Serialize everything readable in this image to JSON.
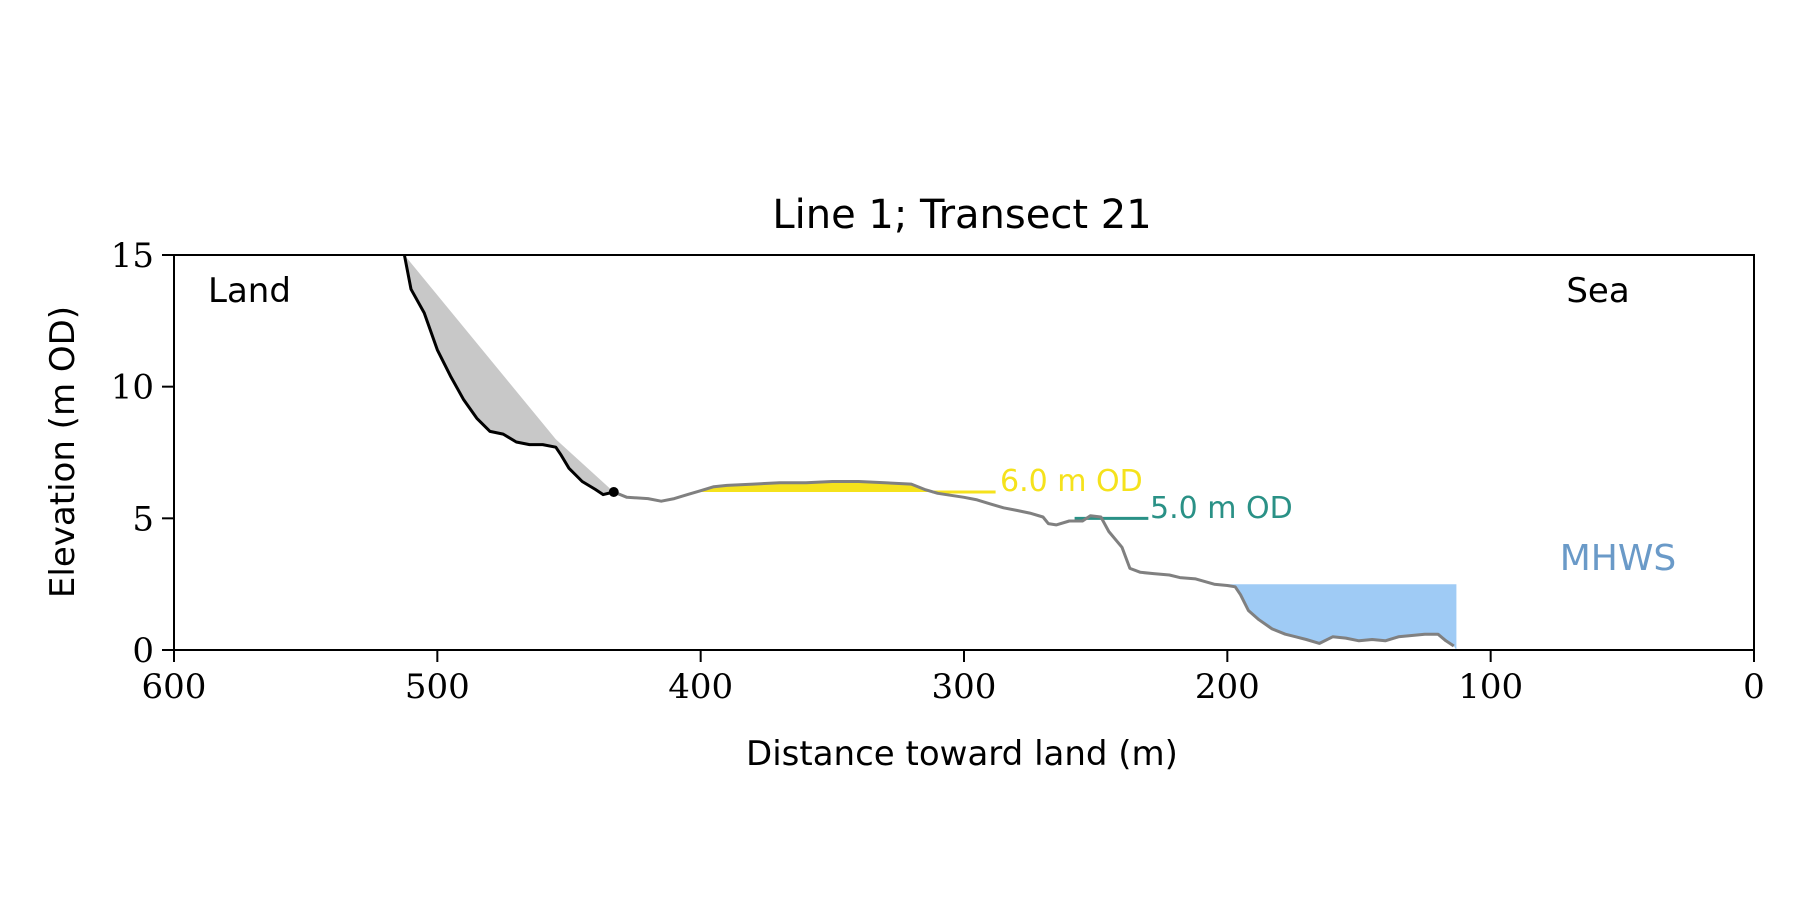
{
  "chart_data": {
    "type": "line",
    "title": "Line 1; Transect 21",
    "xlabel": "Distance toward land (m)",
    "ylabel": "Elevation (m OD)",
    "xlim": [
      600,
      0
    ],
    "ylim": [
      0,
      15
    ],
    "x_ticks": [
      600,
      500,
      400,
      300,
      200,
      100,
      0
    ],
    "y_ticks": [
      0,
      5,
      10,
      15
    ],
    "x_inverted": true,
    "grid": false,
    "annotations": {
      "land": "Land",
      "sea": "Sea",
      "mhws": "MHWS",
      "od6": "6.0 m OD",
      "od5": "5.0 m OD"
    },
    "colors": {
      "cliff_line": "#000000",
      "profile_line": "#808080",
      "cliff_fill": "#c8c8c8",
      "od6": "#f5e21c",
      "od5": "#2a9186",
      "mhws_fill": "#9fcbf5",
      "mhws_text": "#6a9ac8"
    },
    "cliff_top": [
      512.5,
      15.0
    ],
    "cliff_toe": [
      433,
      6.0
    ],
    "cliff_profile": [
      [
        512.5,
        15.0
      ],
      [
        510,
        13.7
      ],
      [
        505,
        12.8
      ],
      [
        500,
        11.4
      ],
      [
        495,
        10.4
      ],
      [
        490,
        9.5
      ],
      [
        485,
        8.8
      ],
      [
        480,
        8.3
      ],
      [
        475,
        8.2
      ],
      [
        470,
        7.9
      ],
      [
        465,
        7.8
      ],
      [
        460,
        7.8
      ],
      [
        455,
        7.7
      ],
      [
        453,
        7.4
      ],
      [
        450,
        6.9
      ],
      [
        445,
        6.4
      ],
      [
        440,
        6.1
      ],
      [
        437,
        5.9
      ],
      [
        433,
        6.0
      ]
    ],
    "beach_profile": [
      [
        433,
        6.0
      ],
      [
        428,
        5.8
      ],
      [
        420,
        5.75
      ],
      [
        415,
        5.65
      ],
      [
        410,
        5.75
      ],
      [
        405,
        5.9
      ],
      [
        400,
        6.05
      ],
      [
        395,
        6.2
      ],
      [
        390,
        6.25
      ],
      [
        380,
        6.3
      ],
      [
        370,
        6.35
      ],
      [
        360,
        6.35
      ],
      [
        350,
        6.4
      ],
      [
        340,
        6.4
      ],
      [
        330,
        6.35
      ],
      [
        320,
        6.3
      ],
      [
        315,
        6.1
      ],
      [
        310,
        5.95
      ],
      [
        300,
        5.8
      ],
      [
        295,
        5.7
      ],
      [
        290,
        5.55
      ],
      [
        285,
        5.4
      ],
      [
        280,
        5.3
      ],
      [
        275,
        5.2
      ],
      [
        270,
        5.05
      ],
      [
        268,
        4.8
      ],
      [
        265,
        4.75
      ],
      [
        260,
        4.9
      ],
      [
        255,
        4.9
      ],
      [
        252,
        5.1
      ],
      [
        248,
        5.05
      ],
      [
        245,
        4.5
      ],
      [
        240,
        3.9
      ],
      [
        237,
        3.1
      ],
      [
        233,
        2.95
      ],
      [
        228,
        2.9
      ],
      [
        222,
        2.85
      ],
      [
        218,
        2.75
      ],
      [
        212,
        2.7
      ],
      [
        205,
        2.5
      ],
      [
        200,
        2.45
      ],
      [
        197,
        2.4
      ],
      [
        195,
        2.1
      ],
      [
        192,
        1.5
      ],
      [
        188,
        1.15
      ],
      [
        183,
        0.8
      ],
      [
        178,
        0.6
      ],
      [
        174,
        0.5
      ],
      [
        170,
        0.4
      ],
      [
        165,
        0.25
      ],
      [
        160,
        0.5
      ],
      [
        155,
        0.45
      ],
      [
        150,
        0.35
      ],
      [
        145,
        0.4
      ],
      [
        140,
        0.35
      ],
      [
        135,
        0.5
      ],
      [
        130,
        0.55
      ],
      [
        125,
        0.6
      ],
      [
        120,
        0.6
      ],
      [
        117,
        0.35
      ],
      [
        114,
        0.15
      ]
    ],
    "cliff_hull": [
      [
        512.5,
        15.0
      ],
      [
        455,
        8.0
      ],
      [
        433,
        6.0
      ]
    ],
    "od6_level": 6.0,
    "od6_fill_range": [
      403,
      312
    ],
    "od6_line_range": [
      312,
      288
    ],
    "od5_level": 5.0,
    "od5_line_range": [
      258,
      230
    ],
    "mhws_level": 2.5,
    "mhws_range": [
      205,
      113
    ]
  }
}
